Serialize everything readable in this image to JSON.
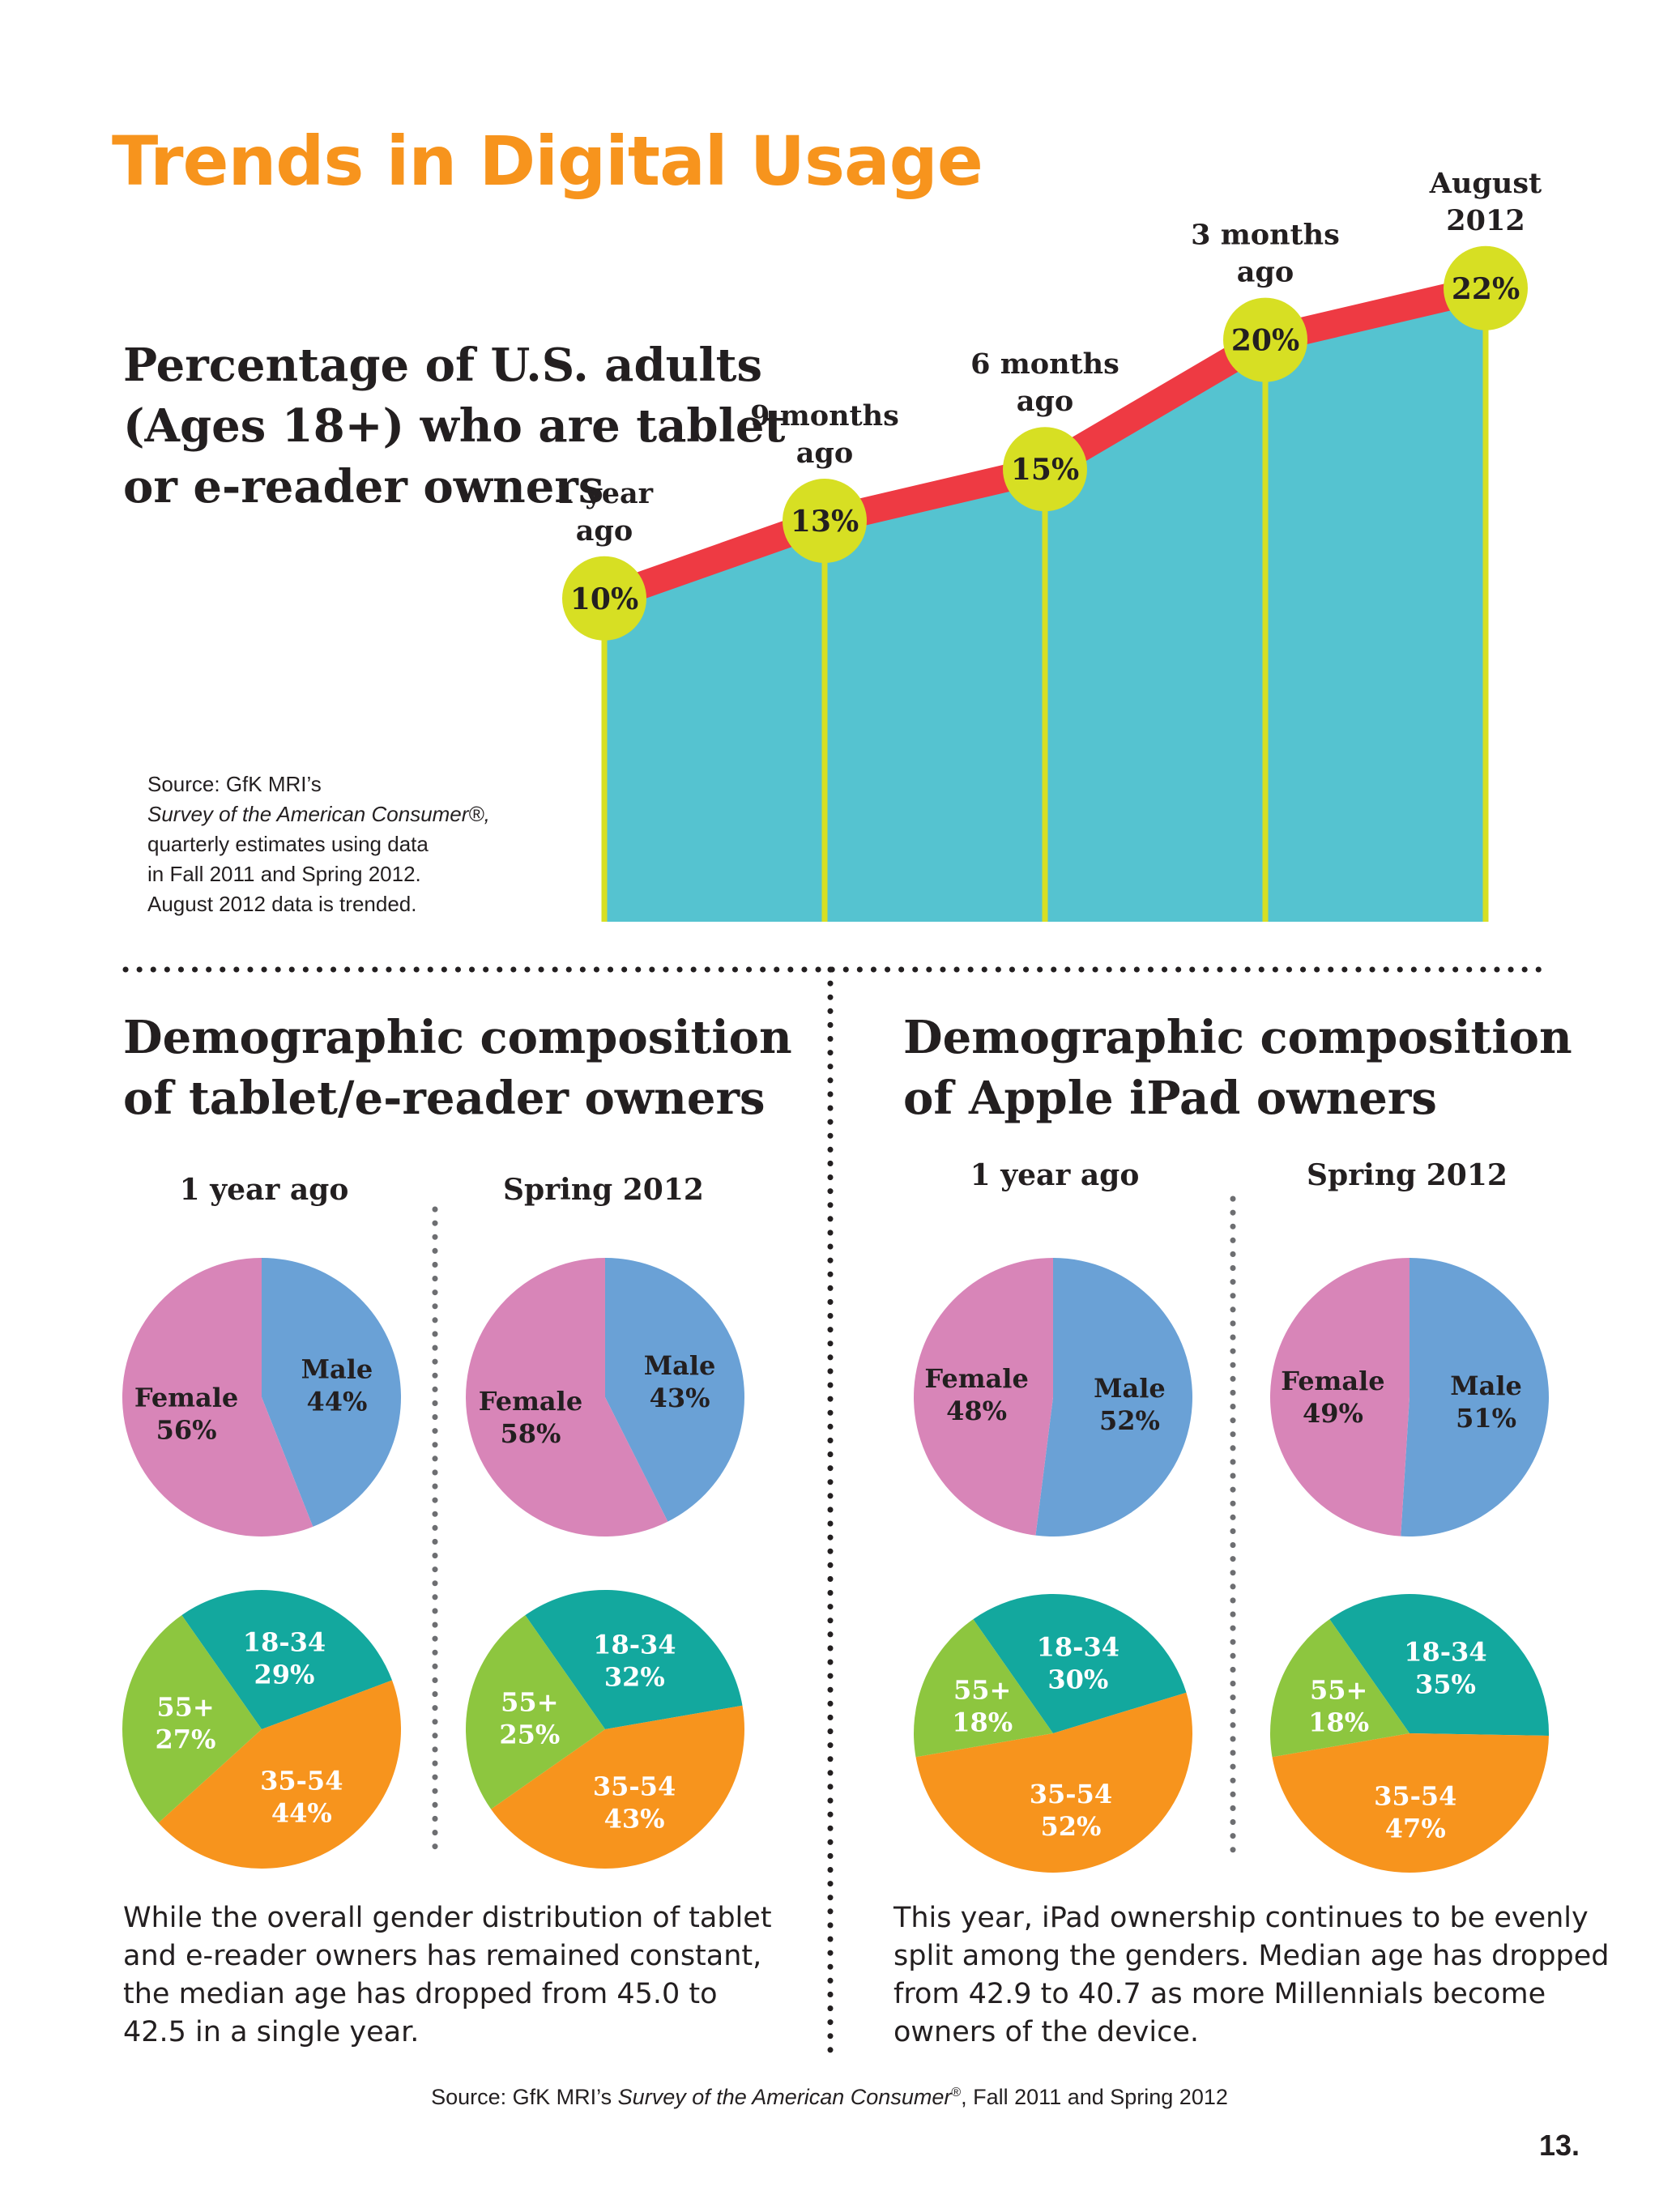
{
  "page_title": "Trends in Digital Usage",
  "trend_heading": [
    "Percentage of U.S. adults",
    "(Ages 18+) who are tablet",
    "or e-reader owners"
  ],
  "trend_source": {
    "line1": "Source: GfK MRI’s",
    "line2": "Survey of the American Consumer®,",
    "line3": "quarterly estimates using data",
    "line4": "in Fall 2011 and Spring 2012.",
    "line5": "August 2012 data is trended."
  },
  "demo_heading_left": [
    "Demographic composition",
    "of tablet/e-reader owners"
  ],
  "demo_heading_right": [
    "Demographic composition",
    "of Apple iPad owners"
  ],
  "period_labels": {
    "left_a": "1 year ago",
    "left_b": "Spring 2012",
    "right_a": "1 year ago",
    "right_b": "Spring 2012"
  },
  "body_left": "While the overall gender distribution of tablet and e-reader owners has remained constant, the median age has dropped from 45.0 to 42.5 in a single year.",
  "body_right": "This year, iPad ownership continues to be evenly split among the genders. Median age has dropped from  42.9 to 40.7  as more Millennials become owners of the device.",
  "footer_source": {
    "pre": "Source: GfK MRI’s ",
    "italic": "Survey of the American Consumer",
    "mark": "®",
    "post": ",  Fall 2011 and Spring 2012"
  },
  "page_number": "13.",
  "colors": {
    "title_orange": "#f7941d",
    "area": "#55c3d0",
    "trend_line": "#ee3a43",
    "marker": "#d7df23",
    "female": "#d885b8",
    "male": "#6aa1d6",
    "age_18_34": "#13a89e",
    "age_35_54": "#f7941d",
    "age_55_plus": "#8dc63f"
  },
  "chart_data": [
    {
      "type": "area",
      "title": "Percentage of U.S. adults (Ages 18+) who are tablet or e-reader owners",
      "categories": [
        [
          "1 year",
          "ago"
        ],
        [
          "9 months",
          "ago"
        ],
        [
          "6 months",
          "ago"
        ],
        [
          "3 months",
          "ago"
        ],
        [
          "August",
          "2012"
        ]
      ],
      "values": [
        10,
        13,
        15,
        20,
        22
      ],
      "value_labels": [
        "10%",
        "13%",
        "15%",
        "20%",
        "22%"
      ],
      "unit": "%",
      "ylim": [
        0,
        25
      ],
      "grid": false,
      "legend": "none"
    },
    {
      "type": "pie",
      "group": "tablet/e-reader owners",
      "title": "1 year ago",
      "slices": [
        {
          "label": "Female",
          "value": 56,
          "text": "56%",
          "color": "#d885b8"
        },
        {
          "label": "Male",
          "value": 44,
          "text": "44%",
          "color": "#6aa1d6"
        }
      ]
    },
    {
      "type": "pie",
      "group": "tablet/e-reader owners",
      "title": "Spring 2012",
      "slices": [
        {
          "label": "Female",
          "value": 58,
          "text": "58%",
          "color": "#d885b8"
        },
        {
          "label": "Male",
          "value": 43,
          "text": "43%",
          "color": "#6aa1d6"
        }
      ]
    },
    {
      "type": "pie",
      "group": "tablet/e-reader owners",
      "title": "1 year ago",
      "slices": [
        {
          "label": "18-34",
          "value": 29,
          "text": "29%",
          "color": "#13a89e"
        },
        {
          "label": "35-54",
          "value": 44,
          "text": "44%",
          "color": "#f7941d"
        },
        {
          "label": "55+",
          "value": 27,
          "text": "27%",
          "color": "#8dc63f"
        }
      ]
    },
    {
      "type": "pie",
      "group": "tablet/e-reader owners",
      "title": "Spring 2012",
      "slices": [
        {
          "label": "18-34",
          "value": 32,
          "text": "32%",
          "color": "#13a89e"
        },
        {
          "label": "35-54",
          "value": 43,
          "text": "43%",
          "color": "#f7941d"
        },
        {
          "label": "55+",
          "value": 25,
          "text": "25%",
          "color": "#8dc63f"
        }
      ]
    },
    {
      "type": "pie",
      "group": "Apple iPad owners",
      "title": "1 year ago",
      "slices": [
        {
          "label": "Female",
          "value": 48,
          "text": "48%",
          "color": "#d885b8"
        },
        {
          "label": "Male",
          "value": 52,
          "text": "52%",
          "color": "#6aa1d6"
        }
      ]
    },
    {
      "type": "pie",
      "group": "Apple iPad owners",
      "title": "Spring 2012",
      "slices": [
        {
          "label": "Female",
          "value": 49,
          "text": "49%",
          "color": "#d885b8"
        },
        {
          "label": "Male",
          "value": 51,
          "text": "51%",
          "color": "#6aa1d6"
        }
      ]
    },
    {
      "type": "pie",
      "group": "Apple iPad owners",
      "title": "1 year ago",
      "slices": [
        {
          "label": "18-34",
          "value": 30,
          "text": "30%",
          "color": "#13a89e"
        },
        {
          "label": "35-54",
          "value": 52,
          "text": "52%",
          "color": "#f7941d"
        },
        {
          "label": "55+",
          "value": 18,
          "text": "18%",
          "color": "#8dc63f"
        }
      ]
    },
    {
      "type": "pie",
      "group": "Apple iPad owners",
      "title": "Spring 2012",
      "slices": [
        {
          "label": "18-34",
          "value": 35,
          "text": "35%",
          "color": "#13a89e"
        },
        {
          "label": "35-54",
          "value": 47,
          "text": "47%",
          "color": "#f7941d"
        },
        {
          "label": "55+",
          "value": 18,
          "text": "18%",
          "color": "#8dc63f"
        }
      ]
    }
  ]
}
